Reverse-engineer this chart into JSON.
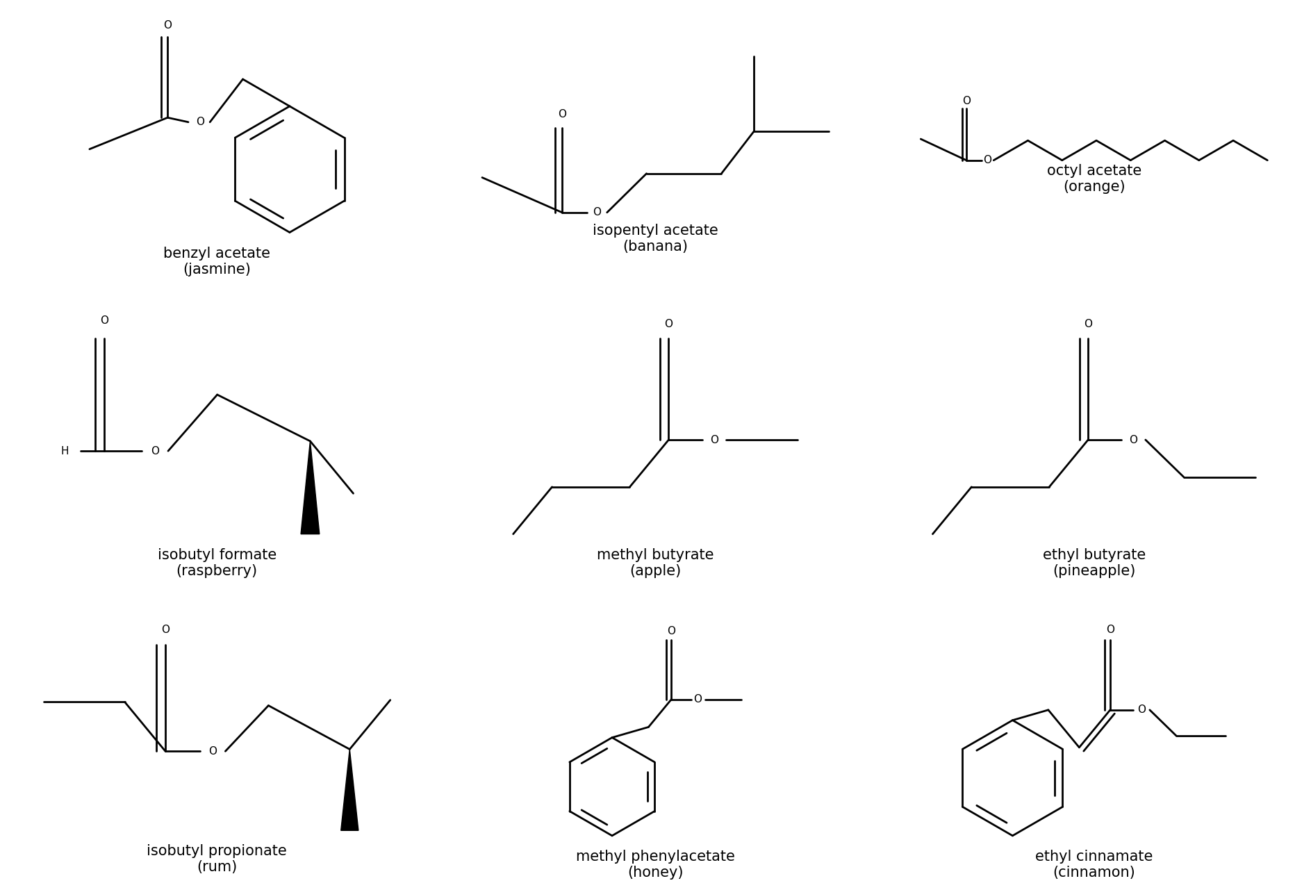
{
  "compounds": [
    {
      "name": "benzyl acetate\n(jasmine)",
      "row": 0,
      "col": 0
    },
    {
      "name": "isopentyl acetate\n(banana)",
      "row": 0,
      "col": 1
    },
    {
      "name": "octyl acetate\n(orange)",
      "row": 0,
      "col": 2
    },
    {
      "name": "isobutyl formate\n(raspberry)",
      "row": 1,
      "col": 0
    },
    {
      "name": "methyl butyrate\n(apple)",
      "row": 1,
      "col": 1
    },
    {
      "name": "ethyl butyrate\n(pineapple)",
      "row": 1,
      "col": 2
    },
    {
      "name": "isobutyl propionate\n(rum)",
      "row": 2,
      "col": 0
    },
    {
      "name": "methyl phenylacetate\n(honey)",
      "row": 2,
      "col": 1
    },
    {
      "name": "ethyl cinnamate\n(cinnamon)",
      "row": 2,
      "col": 2
    }
  ],
  "fig_width": 18.87,
  "fig_height": 12.81,
  "label_fontsize": 15,
  "background_color": "#ffffff",
  "text_color": "#000000",
  "lw": 2.0
}
